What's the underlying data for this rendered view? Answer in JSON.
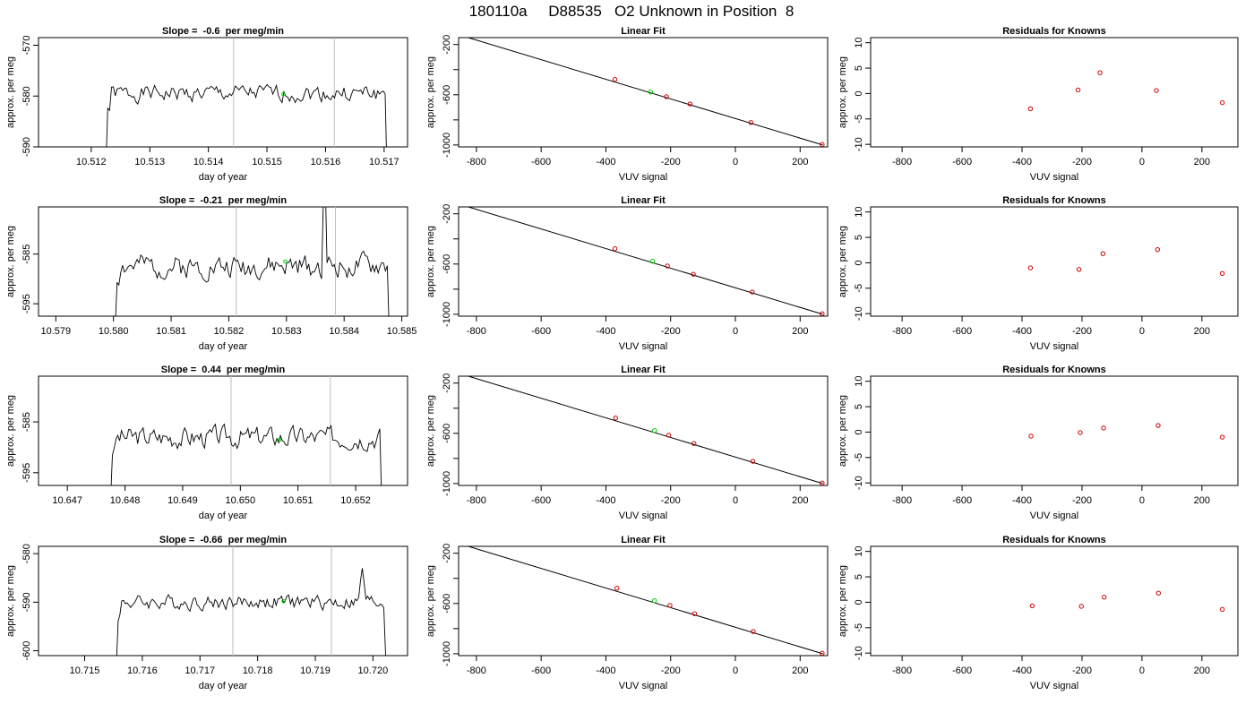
{
  "page_title": "180110a     D88535   O2 Unknown in Position  8",
  "colors": {
    "trace": "#000000",
    "marker": "#00cc00",
    "residual": "#cc0000",
    "vline": "#bebebe",
    "fitline": "#000000"
  },
  "chart_data": [
    {
      "type": "line",
      "panel": "time-series",
      "row": 0,
      "title": "Slope =  -0.6  per meg/min",
      "xlabel": "day of year",
      "ylabel": "approx. per meg",
      "xlim": [
        10.5111,
        10.5174
      ],
      "ylim": [
        -590,
        -568.5
      ],
      "xticks": [
        10.512,
        10.513,
        10.514,
        10.515,
        10.516,
        10.517
      ],
      "xtick_labels": [
        "10.512",
        "10.513",
        "10.514",
        "10.515",
        "10.516",
        "10.517"
      ],
      "yticks": [
        -590,
        -580,
        -570
      ],
      "ytick_labels": [
        "-590",
        "-580",
        "-570"
      ],
      "vlines": [
        10.51443,
        10.51615
      ],
      "trace": {
        "x_start": 10.51225,
        "x_end": 10.51705,
        "mean": -579.5,
        "noise": 1.4,
        "start_value": -594,
        "end_value": -596,
        "seed": 1
      },
      "marker": {
        "x": 10.51528,
        "y": -579.6
      }
    },
    {
      "type": "line",
      "panel": "linear-fit",
      "row": 0,
      "title": "Linear Fit",
      "xlabel": "VUV signal",
      "ylabel": "approx. per meg",
      "xlim": [
        -855,
        285
      ],
      "ylim": [
        -1015,
        -145
      ],
      "xticks": [
        -800,
        -600,
        -400,
        -200,
        0,
        200
      ],
      "xtick_labels": [
        "-800",
        "-600",
        "-400",
        "-200",
        "0",
        "200"
      ],
      "yticks": [
        -1000,
        -800,
        -600,
        -400,
        -200
      ],
      "ytick_labels": [
        "-1000",
        "",
        "-600",
        "",
        "-200"
      ],
      "fit_line": {
        "x": [
          -825,
          270
        ],
        "y": [
          -145,
          -1000
        ]
      },
      "knowns": {
        "x": [
          -372,
          -213,
          -140,
          48,
          268
        ],
        "y": [
          -478,
          -615,
          -673,
          -821,
          -996
        ]
      },
      "unknown": {
        "x": -262,
        "y": -578
      }
    },
    {
      "type": "scatter",
      "panel": "residuals",
      "row": 0,
      "title": "Residuals for Knowns",
      "xlabel": "VUV signal",
      "ylabel": "approx. per meg",
      "xlim": [
        -905,
        320
      ],
      "ylim": [
        -10.5,
        11
      ],
      "xticks": [
        -800,
        -600,
        -400,
        -200,
        0,
        200
      ],
      "xtick_labels": [
        "-800",
        "-600",
        "-400",
        "-200",
        "0",
        "200"
      ],
      "yticks": [
        -10,
        -5,
        0,
        5,
        10
      ],
      "ytick_labels": [
        "-10",
        "-5",
        "0",
        "5",
        "10"
      ],
      "x": [
        -372,
        -213,
        -140,
        48,
        268
      ],
      "y": [
        -3.0,
        0.7,
        4.1,
        0.6,
        -1.8
      ]
    },
    {
      "type": "line",
      "panel": "time-series",
      "row": 1,
      "title": "Slope =  -0.21  per meg/min",
      "xlabel": "day of year",
      "ylabel": "approx. per meg",
      "xlim": [
        10.5787,
        10.5851
      ],
      "ylim": [
        -597.5,
        -575.5
      ],
      "xticks": [
        10.579,
        10.58,
        10.581,
        10.582,
        10.583,
        10.584,
        10.585
      ],
      "xtick_labels": [
        "10.579",
        "10.580",
        "10.581",
        "10.582",
        "10.583",
        "10.584",
        "10.585"
      ],
      "yticks": [
        -595,
        -585
      ],
      "ytick_labels": [
        "-595",
        "-585"
      ],
      "vlines": [
        10.58213,
        10.58385
      ],
      "trace": {
        "x_start": 10.58003,
        "x_end": 10.58478,
        "mean": -587.5,
        "noise": 2.0,
        "start_value": -600,
        "end_value": -600,
        "seed": 2
      },
      "spike": {
        "x": 10.58365,
        "y": -574
      },
      "marker": {
        "x": 10.58298,
        "y": -586.5
      }
    },
    {
      "type": "line",
      "panel": "linear-fit",
      "row": 1,
      "title": "Linear Fit",
      "xlabel": "VUV signal",
      "ylabel": "approx. per meg",
      "xlim": [
        -855,
        285
      ],
      "ylim": [
        -1015,
        -145
      ],
      "xticks": [
        -800,
        -600,
        -400,
        -200,
        0,
        200
      ],
      "xtick_labels": [
        "-800",
        "-600",
        "-400",
        "-200",
        "0",
        "200"
      ],
      "yticks": [
        -1000,
        -800,
        -600,
        -400,
        -200
      ],
      "ytick_labels": [
        "-1000",
        "",
        "-600",
        "",
        "-200"
      ],
      "fit_line": {
        "x": [
          -825,
          270
        ],
        "y": [
          -145,
          -1000
        ]
      },
      "knowns": {
        "x": [
          -372,
          -210,
          -130,
          52,
          268
        ],
        "y": [
          -478,
          -615,
          -681,
          -823,
          -996
        ]
      },
      "unknown": {
        "x": -256,
        "y": -578
      }
    },
    {
      "type": "scatter",
      "panel": "residuals",
      "row": 1,
      "title": "Residuals for Knowns",
      "xlabel": "VUV signal",
      "ylabel": "approx. per meg",
      "xlim": [
        -905,
        320
      ],
      "ylim": [
        -10.5,
        11
      ],
      "xticks": [
        -800,
        -600,
        -400,
        -200,
        0,
        200
      ],
      "xtick_labels": [
        "-800",
        "-600",
        "-400",
        "-200",
        "0",
        "200"
      ],
      "yticks": [
        -10,
        -5,
        0,
        5,
        10
      ],
      "ytick_labels": [
        "-10",
        "-5",
        "0",
        "5",
        "10"
      ],
      "x": [
        -372,
        -210,
        -130,
        52,
        268
      ],
      "y": [
        -1.0,
        -1.3,
        1.8,
        2.6,
        -2.1
      ]
    },
    {
      "type": "line",
      "panel": "time-series",
      "row": 2,
      "title": "Slope =  0.44  per meg/min",
      "xlabel": "day of year",
      "ylabel": "approx. per meg",
      "xlim": [
        10.6465,
        10.6529
      ],
      "ylim": [
        -597.5,
        -576
      ],
      "xticks": [
        10.647,
        10.648,
        10.649,
        10.65,
        10.651,
        10.652
      ],
      "xtick_labels": [
        "10.647",
        "10.648",
        "10.649",
        "10.650",
        "10.651",
        "10.652"
      ],
      "yticks": [
        -595,
        -585
      ],
      "ytick_labels": [
        "-595",
        "-585"
      ],
      "vlines": [
        10.64984,
        10.65156
      ],
      "trace": {
        "x_start": 10.64775,
        "x_end": 10.65245,
        "mean": -588.0,
        "noise": 1.8,
        "start_value": -600,
        "end_value": -600,
        "seed": 3
      },
      "marker": {
        "x": 10.65068,
        "y": -588.5
      }
    },
    {
      "type": "line",
      "panel": "linear-fit",
      "row": 2,
      "title": "Linear Fit",
      "xlabel": "VUV signal",
      "ylabel": "approx. per meg",
      "xlim": [
        -855,
        285
      ],
      "ylim": [
        -1015,
        -145
      ],
      "xticks": [
        -800,
        -600,
        -400,
        -200,
        0,
        200
      ],
      "xtick_labels": [
        "-800",
        "-600",
        "-400",
        "-200",
        "0",
        "200"
      ],
      "yticks": [
        -1000,
        -800,
        -600,
        -400,
        -200
      ],
      "ytick_labels": [
        "-1000",
        "",
        "-600",
        "",
        "-200"
      ],
      "fit_line": {
        "x": [
          -825,
          270
        ],
        "y": [
          -145,
          -1000
        ]
      },
      "knowns": {
        "x": [
          -370,
          -206,
          -128,
          54,
          268
        ],
        "y": [
          -478,
          -615,
          -681,
          -823,
          -996
        ]
      },
      "unknown": {
        "x": -250,
        "y": -578
      }
    },
    {
      "type": "scatter",
      "panel": "residuals",
      "row": 2,
      "title": "Residuals for Knowns",
      "xlabel": "VUV signal",
      "ylabel": "approx. per meg",
      "xlim": [
        -905,
        320
      ],
      "ylim": [
        -10.5,
        11
      ],
      "xticks": [
        -800,
        -600,
        -400,
        -200,
        0,
        200
      ],
      "xtick_labels": [
        "-800",
        "-600",
        "-400",
        "-200",
        "0",
        "200"
      ],
      "yticks": [
        -10,
        -5,
        0,
        5,
        10
      ],
      "ytick_labels": [
        "-10",
        "-5",
        "0",
        "5",
        "10"
      ],
      "x": [
        -370,
        -206,
        -128,
        54,
        268
      ],
      "y": [
        -0.8,
        -0.1,
        0.8,
        1.3,
        -1.0
      ]
    },
    {
      "type": "line",
      "panel": "time-series",
      "row": 3,
      "title": "Slope =  -0.66  per meg/min",
      "xlabel": "day of year",
      "ylabel": "approx. per meg",
      "xlim": [
        10.7142,
        10.7206
      ],
      "ylim": [
        -601,
        -578.5
      ],
      "xticks": [
        10.715,
        10.716,
        10.717,
        10.718,
        10.719,
        10.72
      ],
      "xtick_labels": [
        "10.715",
        "10.716",
        "10.717",
        "10.718",
        "10.719",
        "10.720"
      ],
      "yticks": [
        -600,
        -590,
        -580
      ],
      "ytick_labels": [
        "-600",
        "-590",
        "-580"
      ],
      "vlines": [
        10.71757,
        10.71928
      ],
      "trace": {
        "x_start": 10.71555,
        "x_end": 10.72022,
        "mean": -590.0,
        "noise": 1.3,
        "start_value": -603,
        "end_value": -601,
        "seed": 4
      },
      "bump": {
        "x": 10.71982,
        "y": -583
      },
      "marker": {
        "x": 10.71845,
        "y": -589.8
      }
    },
    {
      "type": "line",
      "panel": "linear-fit",
      "row": 3,
      "title": "Linear Fit",
      "xlabel": "VUV signal",
      "ylabel": "approx. per meg",
      "xlim": [
        -855,
        285
      ],
      "ylim": [
        -1015,
        -145
      ],
      "xticks": [
        -800,
        -600,
        -400,
        -200,
        0,
        200
      ],
      "xtick_labels": [
        "-800",
        "-600",
        "-400",
        "-200",
        "0",
        "200"
      ],
      "yticks": [
        -1000,
        -800,
        -600,
        -400,
        -200
      ],
      "ytick_labels": [
        "-1000",
        "",
        "-600",
        "",
        "-200"
      ],
      "fit_line": {
        "x": [
          -825,
          270
        ],
        "y": [
          -145,
          -1000
        ]
      },
      "knowns": {
        "x": [
          -366,
          -202,
          -126,
          55,
          268
        ],
        "y": [
          -478,
          -615,
          -681,
          -823,
          -996
        ]
      },
      "unknown": {
        "x": -250,
        "y": -578
      }
    },
    {
      "type": "scatter",
      "panel": "residuals",
      "row": 3,
      "title": "Residuals for Knowns",
      "xlabel": "VUV signal",
      "ylabel": "approx. per meg",
      "xlim": [
        -905,
        320
      ],
      "ylim": [
        -10.5,
        11
      ],
      "xticks": [
        -800,
        -600,
        -400,
        -200,
        0,
        200
      ],
      "xtick_labels": [
        "-800",
        "-600",
        "-400",
        "-200",
        "0",
        "200"
      ],
      "yticks": [
        -10,
        -5,
        0,
        5,
        10
      ],
      "ytick_labels": [
        "-10",
        "-5",
        "0",
        "5",
        "10"
      ],
      "x": [
        -366,
        -202,
        -126,
        55,
        268
      ],
      "y": [
        -0.7,
        -0.8,
        1.0,
        1.8,
        -1.4
      ]
    }
  ]
}
